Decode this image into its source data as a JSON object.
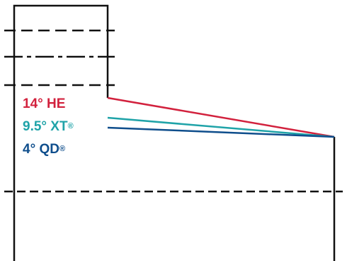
{
  "colors": {
    "outline": "#111111",
    "he": "#d2213d",
    "xt": "#1fa3a8",
    "qd": "#0f4e8c"
  },
  "labels": {
    "he": {
      "text": "14° HE",
      "mark": ""
    },
    "xt": {
      "text": "9.5° XT",
      "mark": "®"
    },
    "qd": {
      "text": "4° QD",
      "mark": "®"
    }
  }
}
